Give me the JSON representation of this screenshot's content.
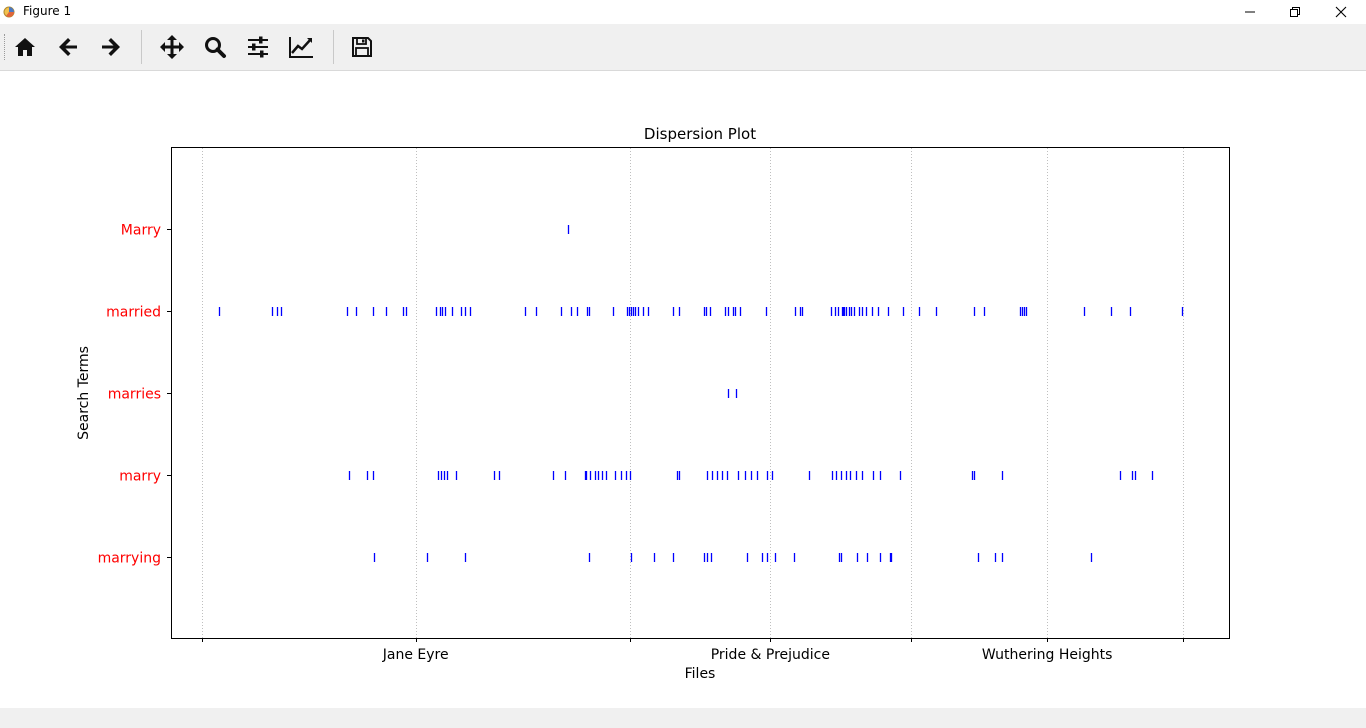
{
  "window": {
    "title": "Figure 1"
  },
  "toolbar": {
    "tools": [
      {
        "name": "home-icon"
      },
      {
        "name": "back-arrow-icon"
      },
      {
        "name": "forward-arrow-icon"
      },
      {
        "name": "pan-icon"
      },
      {
        "name": "zoom-icon"
      },
      {
        "name": "configure-subplots-icon"
      },
      {
        "name": "edit-axis-icon"
      },
      {
        "name": "save-icon"
      }
    ]
  },
  "colors": {
    "tick_label": "#ff0000",
    "mark": "#0000ff",
    "grid": "#b0b0b0"
  },
  "chart_data": {
    "type": "scatter",
    "title": "Dispersion Plot",
    "xlabel": "Files",
    "ylabel": "Search Terms",
    "xlim": [
      -56,
      1926
    ],
    "grid": "x-dotted",
    "x_ticks": [
      0,
      401,
      802,
      1066,
      1330,
      1585,
      1840
    ],
    "x_tick_labels": [
      {
        "x": 401,
        "label": "Jane Eyre"
      },
      {
        "x": 1066,
        "label": "Pride & Prejudice"
      },
      {
        "x": 1585,
        "label": "Wuthering Heights"
      }
    ],
    "categories": [
      "Marry",
      "married",
      "marries",
      "marry",
      "marrying"
    ],
    "series": [
      {
        "values": [
          687
        ]
      },
      {
        "values": [
          32,
          132,
          141,
          149,
          273,
          289,
          321,
          345,
          378,
          382,
          439,
          446,
          450,
          456,
          469,
          486,
          493,
          502,
          606,
          627,
          673,
          692,
          703,
          723,
          725,
          770,
          797,
          801,
          805,
          809,
          813,
          818,
          827,
          836,
          883,
          894,
          941,
          945,
          953,
          981,
          987,
          996,
          1000,
          1010,
          1057,
          1113,
          1122,
          1126,
          1180,
          1187,
          1192,
          1200,
          1202,
          1205,
          1208,
          1213,
          1217,
          1223,
          1232,
          1237,
          1245,
          1257,
          1268,
          1286,
          1314,
          1344,
          1377,
          1448,
          1466,
          1534,
          1538,
          1542,
          1546,
          1655,
          1704,
          1741,
          1838
        ]
      },
      {
        "values": [
          986,
          1001
        ]
      },
      {
        "values": [
          275,
          310,
          320,
          443,
          449,
          454,
          459,
          476,
          547,
          557,
          658,
          681,
          718,
          720,
          727,
          737,
          743,
          750,
          757,
          774,
          785,
          796,
          803,
          890,
          895,
          947,
          957,
          966,
          976,
          985,
          1005,
          1019,
          1029,
          1041,
          1060,
          1070,
          1138,
          1182,
          1189,
          1198,
          1207,
          1216,
          1226,
          1238,
          1259,
          1271,
          1309,
          1444,
          1448,
          1500,
          1722,
          1745,
          1749,
          1781
        ]
      },
      {
        "values": [
          323,
          423,
          493,
          725,
          805,
          847,
          884,
          941,
          948,
          955,
          1023,
          1051,
          1059,
          1074,
          1110,
          1195,
          1198,
          1229,
          1247,
          1271,
          1290,
          1293,
          1455,
          1488,
          1500,
          1667
        ]
      }
    ]
  }
}
